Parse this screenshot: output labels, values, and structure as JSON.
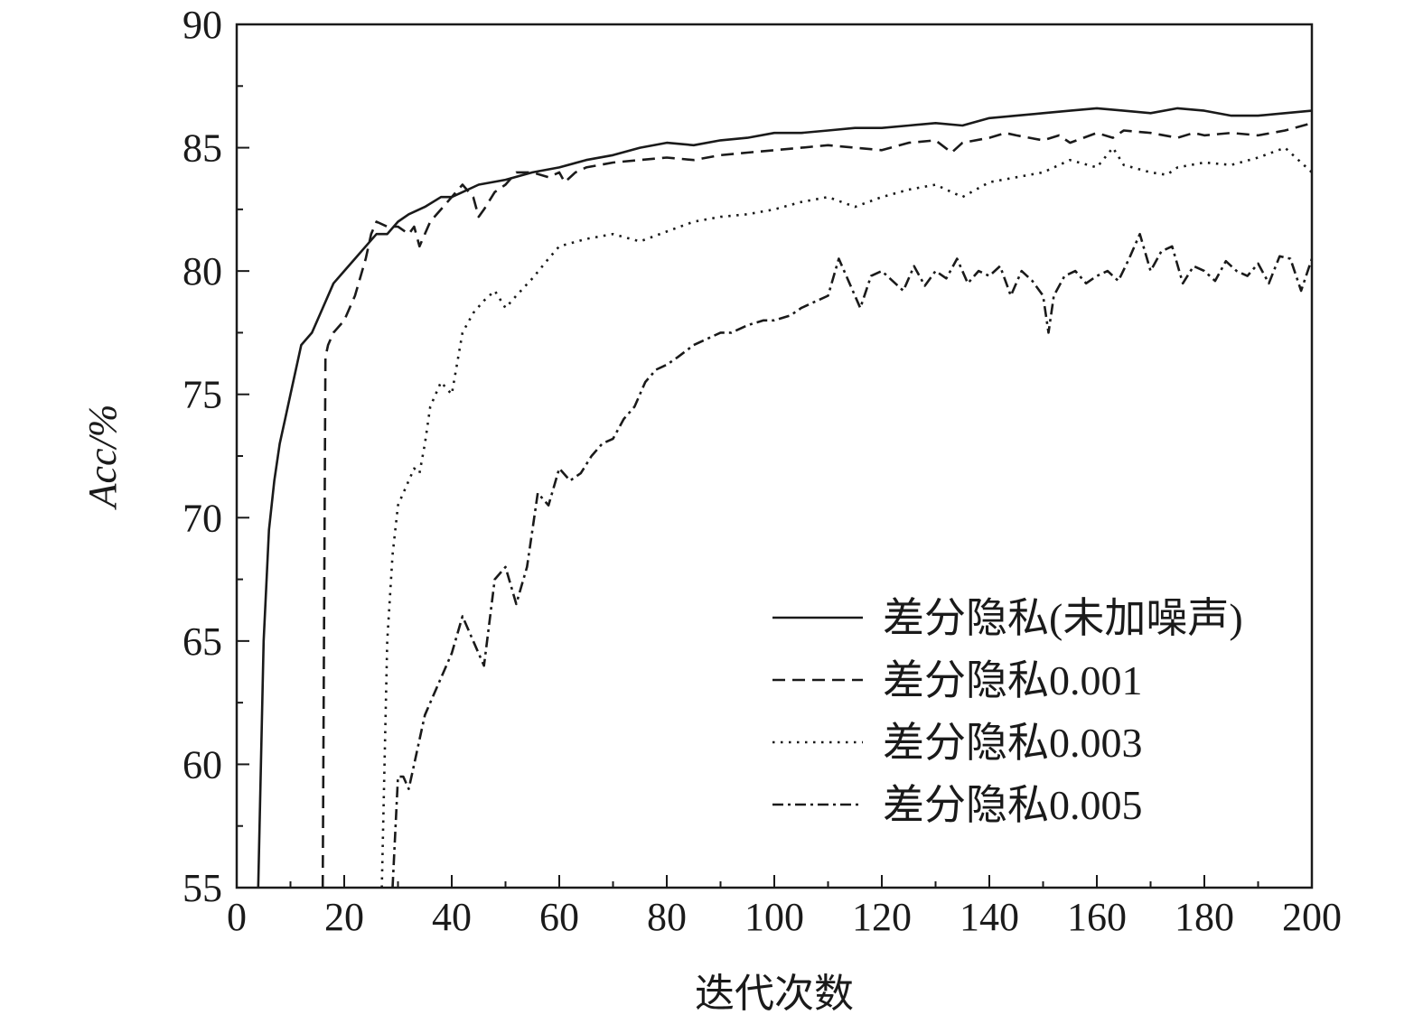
{
  "chart_data": {
    "type": "line",
    "title": "",
    "xlabel": "迭代次数",
    "ylabel": "Acc/%",
    "xlim": [
      0,
      200
    ],
    "ylim": [
      55,
      90
    ],
    "xticks": [
      0,
      20,
      40,
      60,
      80,
      100,
      120,
      140,
      160,
      180,
      200
    ],
    "yticks": [
      55,
      60,
      65,
      70,
      75,
      80,
      85,
      90
    ],
    "grid": false,
    "legend_position": "bottom-right",
    "series": [
      {
        "name": "差分隐私(未加噪声)",
        "dash": "solid",
        "x": [
          4,
          5,
          6,
          7,
          8,
          9,
          10,
          12,
          14,
          16,
          18,
          20,
          22,
          24,
          26,
          28,
          30,
          32,
          35,
          38,
          40,
          45,
          50,
          55,
          60,
          65,
          70,
          75,
          80,
          85,
          90,
          95,
          100,
          105,
          110,
          115,
          120,
          125,
          130,
          135,
          140,
          145,
          150,
          155,
          160,
          165,
          170,
          175,
          180,
          185,
          190,
          195,
          200
        ],
        "y": [
          55,
          65,
          69.5,
          71.5,
          73,
          74,
          75,
          77,
          77.5,
          78.5,
          79.5,
          80,
          80.5,
          81,
          81.5,
          81.5,
          82,
          82.3,
          82.6,
          83,
          83,
          83.5,
          83.7,
          84,
          84.2,
          84.5,
          84.7,
          85,
          85.2,
          85.1,
          85.3,
          85.4,
          85.6,
          85.6,
          85.7,
          85.8,
          85.8,
          85.9,
          86,
          85.9,
          86.2,
          86.3,
          86.4,
          86.5,
          86.6,
          86.5,
          86.4,
          86.6,
          86.5,
          86.3,
          86.3,
          86.4,
          86.5
        ]
      },
      {
        "name": "差分隐私0.001",
        "dash": "dashed",
        "x": [
          16,
          16.5,
          17,
          18,
          20,
          22,
          24,
          25,
          26,
          28,
          30,
          32,
          33,
          34,
          36,
          38,
          40,
          42,
          44,
          45,
          46,
          48,
          50,
          52,
          55,
          58,
          60,
          61,
          63,
          65,
          70,
          75,
          80,
          85,
          90,
          95,
          100,
          105,
          110,
          115,
          120,
          125,
          130,
          133,
          135,
          140,
          143,
          145,
          150,
          153,
          155,
          160,
          163,
          165,
          170,
          175,
          178,
          180,
          185,
          190,
          195,
          200
        ],
        "y": [
          55,
          76.5,
          77,
          77.5,
          78,
          79,
          80.5,
          81.5,
          82,
          81.8,
          81.8,
          81.5,
          81.8,
          81,
          82,
          82.5,
          83,
          83.5,
          83,
          82.2,
          82.5,
          83.2,
          83.5,
          84,
          84,
          83.8,
          84,
          83.6,
          84,
          84.2,
          84.4,
          84.5,
          84.6,
          84.5,
          84.7,
          84.8,
          84.9,
          85,
          85.1,
          85,
          84.9,
          85.2,
          85.3,
          84.8,
          85.2,
          85.4,
          85.6,
          85.5,
          85.3,
          85.5,
          85.2,
          85.6,
          85.4,
          85.7,
          85.6,
          85.4,
          85.6,
          85.5,
          85.6,
          85.5,
          85.7,
          86
        ]
      },
      {
        "name": "差分隐私0.003",
        "dash": "dotted",
        "x": [
          27,
          28,
          29,
          30,
          31,
          32,
          33,
          34,
          35,
          36,
          38,
          40,
          42,
          44,
          46,
          48,
          50,
          52,
          55,
          58,
          60,
          65,
          70,
          75,
          80,
          85,
          90,
          95,
          100,
          105,
          110,
          115,
          120,
          125,
          130,
          135,
          140,
          145,
          150,
          155,
          160,
          163,
          165,
          170,
          173,
          175,
          180,
          185,
          190,
          195,
          200
        ],
        "y": [
          55,
          65,
          68.5,
          70.5,
          71,
          71.5,
          72,
          71.8,
          73,
          74.5,
          75.5,
          75,
          77.5,
          78.3,
          78.8,
          79.2,
          78.5,
          79,
          79.7,
          80.5,
          81,
          81.3,
          81.5,
          81.2,
          81.6,
          82,
          82.2,
          82.3,
          82.5,
          82.8,
          83,
          82.6,
          83,
          83.3,
          83.5,
          83,
          83.6,
          83.8,
          84,
          84.5,
          84.2,
          85,
          84.3,
          84,
          83.9,
          84.2,
          84.4,
          84.3,
          84.6,
          85,
          84
        ]
      },
      {
        "name": "差分隐私0.005",
        "dash": "dashdot",
        "x": [
          29,
          30,
          31,
          32,
          33,
          34,
          35,
          36,
          38,
          40,
          42,
          44,
          46,
          48,
          50,
          52,
          54,
          55,
          56,
          58,
          60,
          62,
          64,
          66,
          68,
          70,
          72,
          74,
          76,
          78,
          80,
          82,
          85,
          88,
          90,
          92,
          95,
          98,
          100,
          103,
          105,
          108,
          110,
          112,
          114,
          116,
          118,
          120,
          122,
          124,
          126,
          128,
          130,
          132,
          134,
          136,
          138,
          140,
          142,
          144,
          146,
          148,
          150,
          151,
          152,
          154,
          156,
          158,
          160,
          162,
          164,
          166,
          168,
          170,
          172,
          174,
          176,
          178,
          180,
          182,
          184,
          186,
          188,
          190,
          192,
          194,
          196,
          198,
          200
        ],
        "y": [
          55,
          59.5,
          59.5,
          59,
          60,
          61,
          62,
          62.5,
          63.5,
          64.5,
          66,
          65,
          64,
          67.5,
          68,
          66.5,
          68,
          69.5,
          71,
          70.5,
          72,
          71.5,
          71.8,
          72.5,
          73,
          73.2,
          74,
          74.5,
          75.5,
          76,
          76.2,
          76.5,
          77,
          77.3,
          77.5,
          77.5,
          77.8,
          78,
          78,
          78.2,
          78.5,
          78.8,
          79,
          80.5,
          79.5,
          78.5,
          79.8,
          80,
          79.6,
          79.2,
          80.2,
          79.4,
          80,
          79.7,
          80.5,
          79.5,
          80,
          79.8,
          80.2,
          79,
          80,
          79.6,
          79,
          77.5,
          79,
          79.8,
          80,
          79.5,
          79.8,
          80,
          79.6,
          80.5,
          81.5,
          80,
          80.8,
          81,
          79.5,
          80.2,
          80,
          79.6,
          80.4,
          80,
          79.8,
          80.3,
          79.5,
          80.6,
          80.5,
          79.2,
          80.5
        ]
      }
    ]
  }
}
